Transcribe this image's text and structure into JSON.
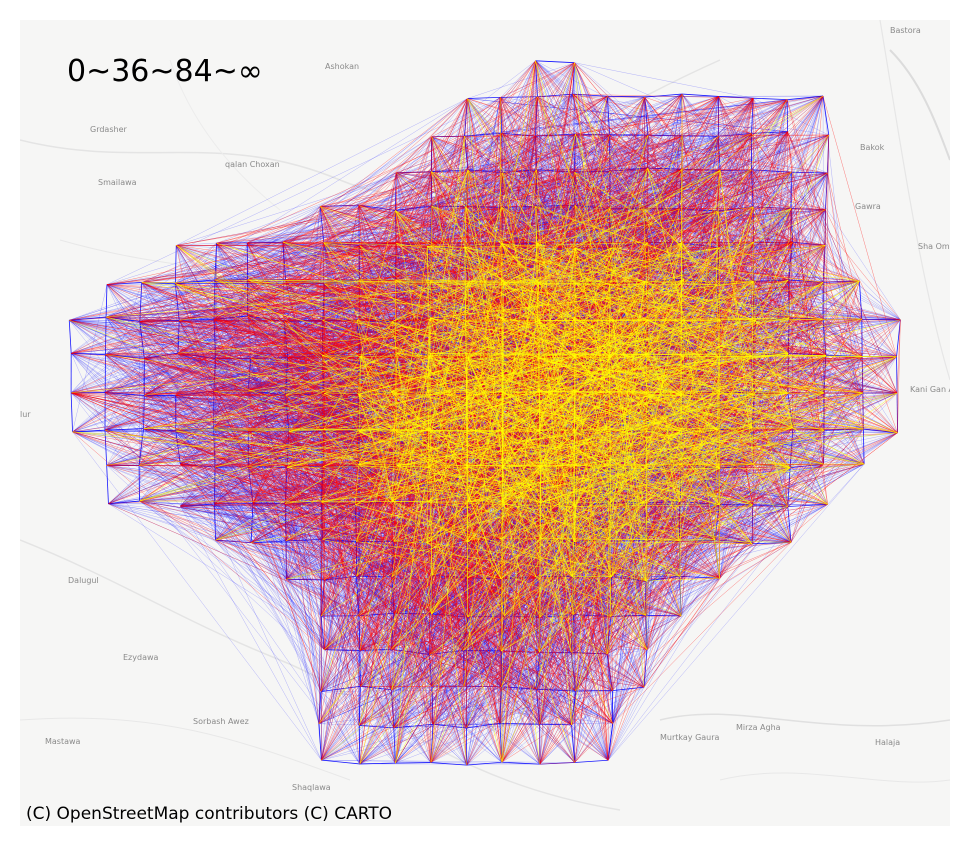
{
  "legend": {
    "text": "0~36~84~∞"
  },
  "attribution": "(C) OpenStreetMap contributors (C) CARTO",
  "places": [
    {
      "name": "Bastora"
    },
    {
      "name": "Ashokan"
    },
    {
      "name": "Grdasher"
    },
    {
      "name": "qalan Choxan"
    },
    {
      "name": "Smailawa"
    },
    {
      "name": "Dalugul"
    },
    {
      "name": "Ezydawa"
    },
    {
      "name": "Sorbash Awez"
    },
    {
      "name": "Mastawa"
    },
    {
      "name": "Shaqlawa"
    },
    {
      "name": "Murtkay Gaura"
    },
    {
      "name": "Mirza Agha"
    },
    {
      "name": "Halaja"
    },
    {
      "name": "Kani Gan Abdul"
    },
    {
      "name": "Sha Omr"
    },
    {
      "name": "Gawra"
    },
    {
      "name": "Bakok"
    },
    {
      "name": "lur"
    }
  ],
  "colors": {
    "map_background": "#f6f6f5",
    "road": "#e2e2e2",
    "band_0_36": "#0000ff",
    "band_36_84": "#ff0000",
    "band_84_inf": "#ffff00"
  }
}
